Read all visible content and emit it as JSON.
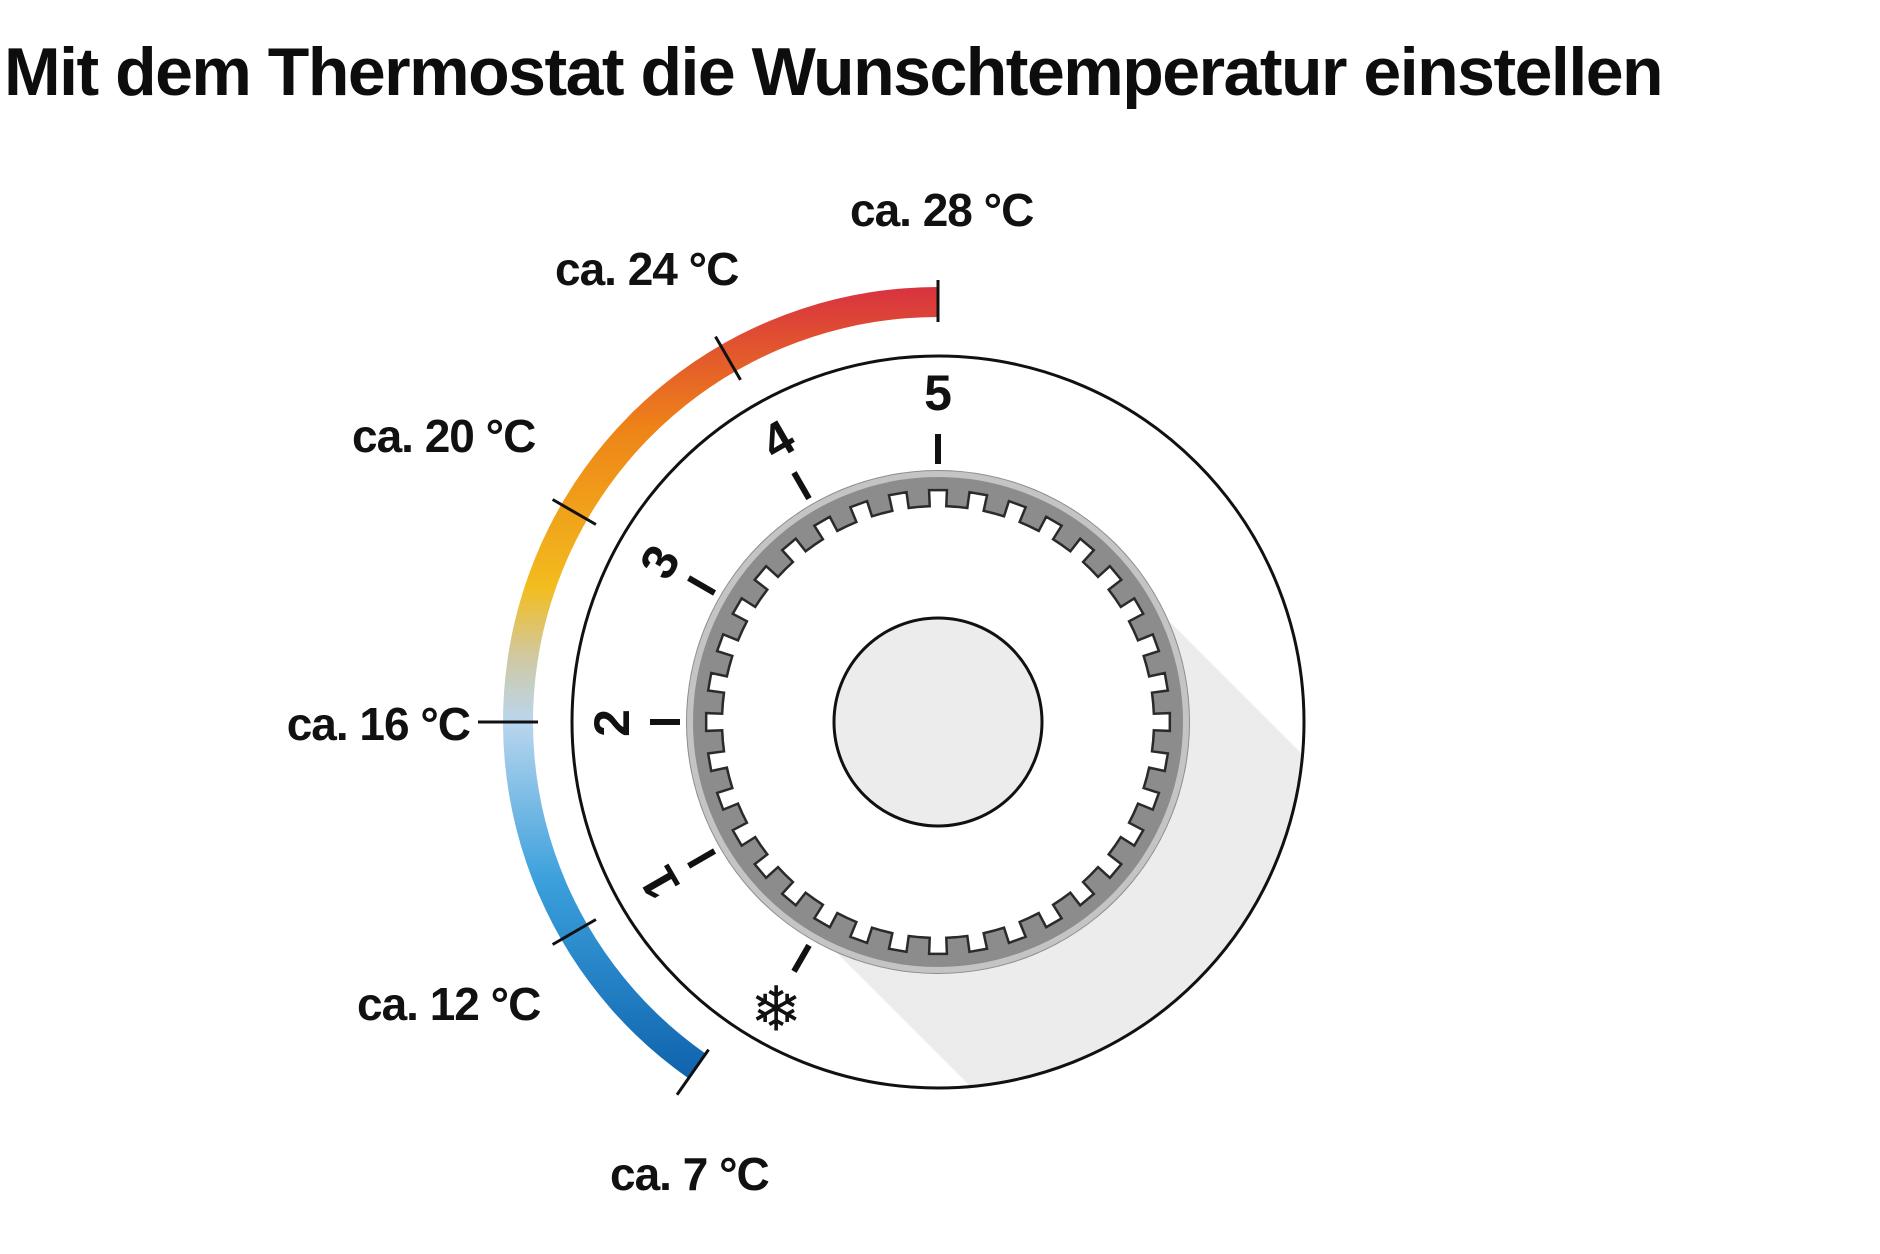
{
  "title": "Mit dem Thermostat die Wunschtemperatur einstellen",
  "temperature_labels": [
    {
      "id": "t7",
      "text": "ca. 7 °C"
    },
    {
      "id": "t12",
      "text": "ca. 12 °C"
    },
    {
      "id": "t16",
      "text": "ca. 16 °C"
    },
    {
      "id": "t20",
      "text": "ca. 20 °C"
    },
    {
      "id": "t24",
      "text": "ca. 24 °C"
    },
    {
      "id": "t28",
      "text": "ca. 28 °C"
    }
  ],
  "dial_scale": [
    {
      "id": "frost",
      "text": "❄"
    },
    {
      "id": "s1",
      "text": "1"
    },
    {
      "id": "s2",
      "text": "2"
    },
    {
      "id": "s3",
      "text": "3"
    },
    {
      "id": "s4",
      "text": "4"
    },
    {
      "id": "s5",
      "text": "5"
    }
  ],
  "colors": {
    "cold": "#0f63ad",
    "mid": "#c8c8c0",
    "warm": "#f0b015",
    "hot": "#d83a3a"
  }
}
